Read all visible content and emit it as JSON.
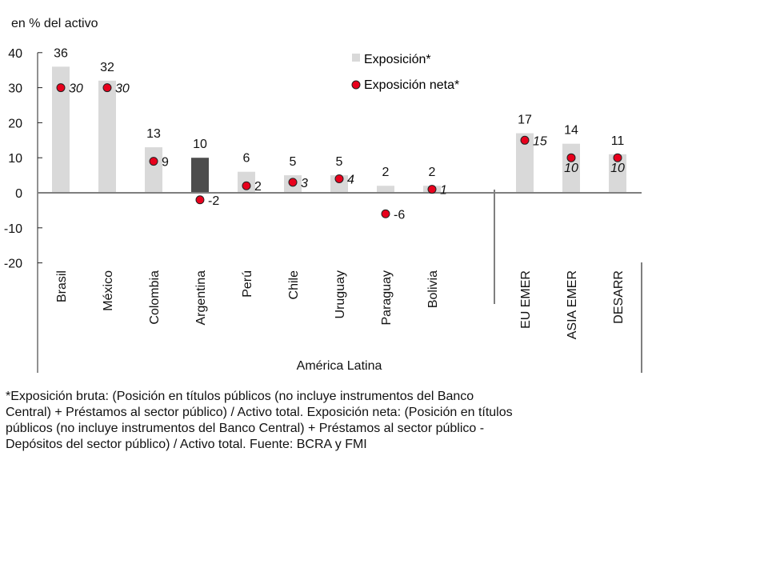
{
  "chart_data": {
    "type": "bar",
    "unit_label": "en % del activo",
    "categories": [
      "Brasil",
      "México",
      "Colombia",
      "Argentina",
      "Perú",
      "Chile",
      "Uruguay",
      "Paraguay",
      "Bolivia",
      "EU EMER",
      "ASIA EMER",
      "DESARR"
    ],
    "group_labels": [
      {
        "label": "América Latina",
        "categories": [
          "Brasil",
          "México",
          "Colombia",
          "Argentina",
          "Perú",
          "Chile",
          "Uruguay",
          "Paraguay",
          "Bolivia"
        ]
      },
      {
        "label": "",
        "categories": [
          "EU EMER",
          "ASIA EMER",
          "DESARR"
        ]
      }
    ],
    "series": [
      {
        "name": "Exposición*",
        "kind": "bar",
        "color": "#d9d9d9",
        "highlight_color": "#4d4d4d",
        "highlight_category": "Argentina",
        "values": [
          36,
          32,
          13,
          10,
          6,
          5,
          5,
          2,
          2,
          17,
          14,
          11
        ],
        "labels": [
          "36",
          "32",
          "13",
          "10",
          "6",
          "5",
          "5",
          "2",
          "2",
          "17",
          "14",
          "11"
        ]
      },
      {
        "name": "Exposición neta*",
        "kind": "point",
        "color": "#e8001c",
        "values": [
          30,
          30,
          9,
          -2,
          2,
          3,
          4,
          -6,
          1,
          15,
          10,
          10
        ],
        "labels": [
          "30",
          "30",
          "9",
          "-2",
          "2",
          "3",
          "4",
          "-6",
          "1",
          "15",
          "10",
          "10"
        ]
      }
    ],
    "yticks": [
      40,
      30,
      20,
      10,
      0,
      -10,
      -20
    ],
    "ytick_labels": [
      "40",
      "30",
      "20",
      "10",
      "0",
      "-10",
      "-20"
    ],
    "ylim": [
      -20,
      40
    ],
    "xlabel": "",
    "ylabel": "",
    "title": "",
    "grid": false,
    "legend_position": "top-right"
  },
  "footnote": [
    "*Exposición bruta: (Posición en títulos públicos (no incluye instrumentos del Banco",
    "Central) + Préstamos al sector público) / Activo total. Exposición neta: (Posición en títulos",
    "públicos (no incluye instrumentos del Banco Central) + Préstamos al sector público -",
    "Depósitos del sector público) / Activo total. Fuente: BCRA y FMI"
  ]
}
